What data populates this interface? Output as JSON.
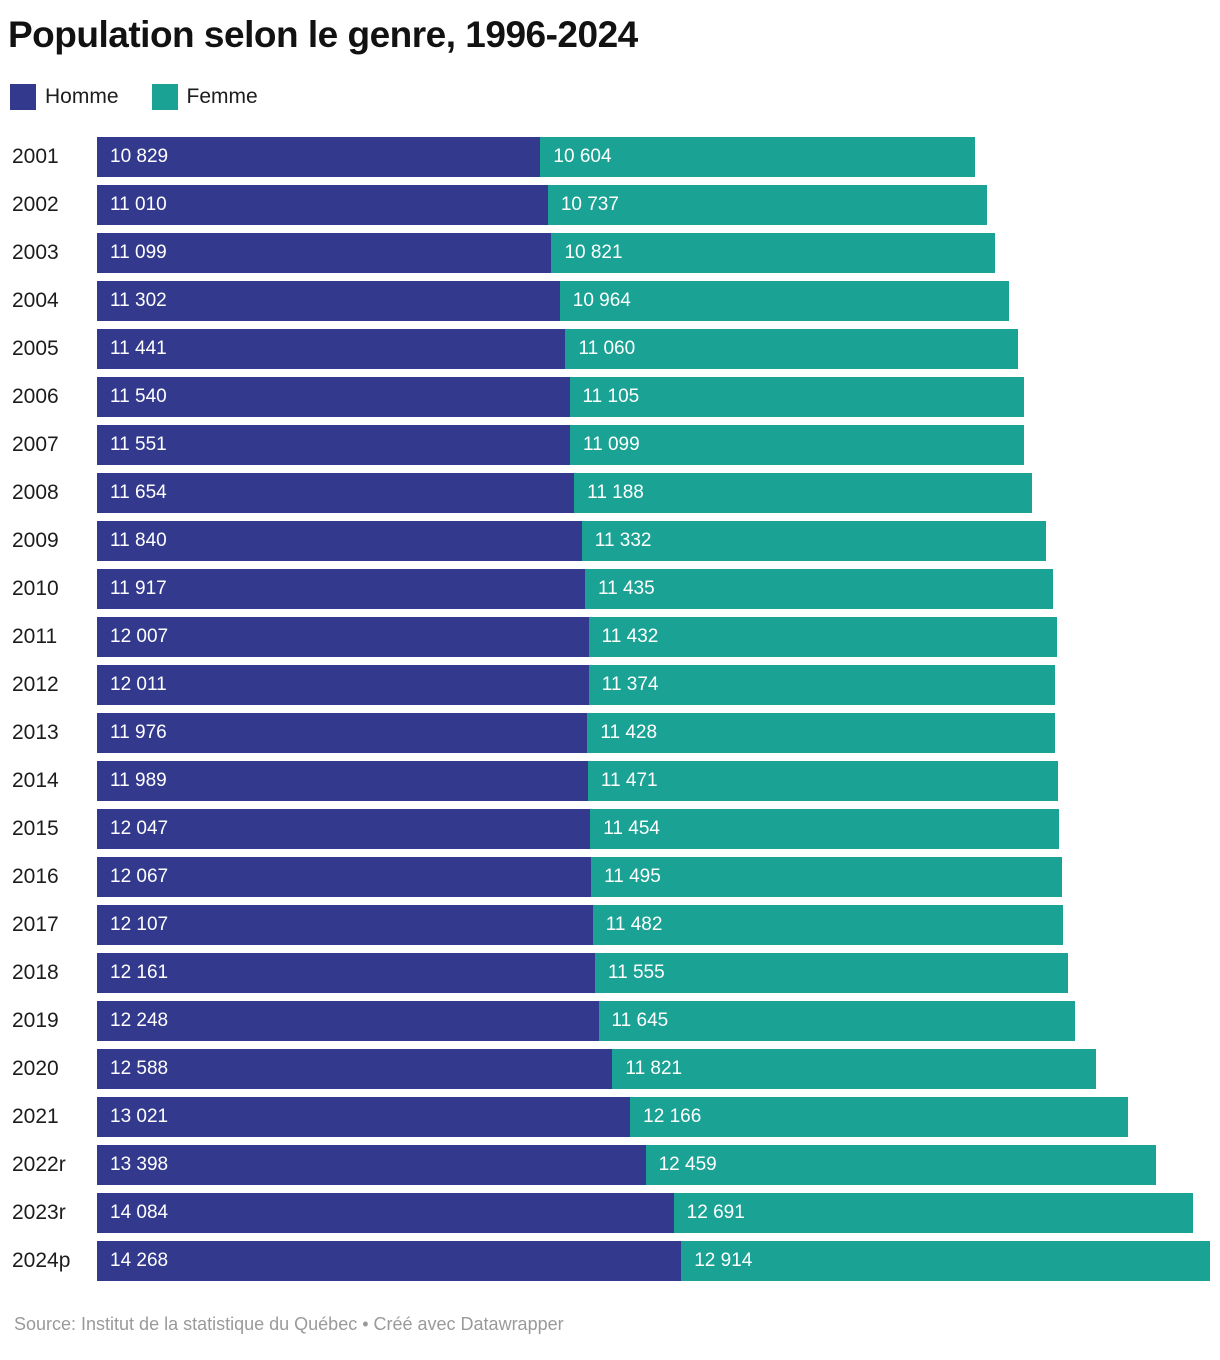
{
  "title": "Population selon le genre, 1996-2024",
  "legend": {
    "items": [
      {
        "label": "Homme",
        "color": "#333a8e"
      },
      {
        "label": "Femme",
        "color": "#1aa394"
      }
    ]
  },
  "footer": "Source: Institut de la statistique du Québec • Créé avec Datawrapper",
  "colors": {
    "homme": "#333a8e",
    "femme": "#1aa394",
    "title_text": "#121212",
    "axis_text": "#1c1c1c",
    "bar_value_text": "#ffffff",
    "footer_text": "#9a9a9a",
    "background": "#ffffff"
  },
  "chart_data": {
    "type": "bar",
    "orientation": "horizontal",
    "stacked": true,
    "title": "Population selon le genre, 1996-2024",
    "legend_position": "top",
    "grid": false,
    "categories": [
      "2001",
      "2002",
      "2003",
      "2004",
      "2005",
      "2006",
      "2007",
      "2008",
      "2009",
      "2010",
      "2011",
      "2012",
      "2013",
      "2014",
      "2015",
      "2016",
      "2017",
      "2018",
      "2019",
      "2020",
      "2021",
      "2022r",
      "2023r",
      "2024p"
    ],
    "series": [
      {
        "name": "Homme",
        "color": "#333a8e",
        "values": [
          10829,
          11010,
          11099,
          11302,
          11441,
          11540,
          11551,
          11654,
          11840,
          11917,
          12007,
          12011,
          11976,
          11989,
          12047,
          12067,
          12107,
          12161,
          12248,
          12588,
          13021,
          13398,
          14084,
          14268
        ],
        "labels": [
          "10 829",
          "11 010",
          "11 099",
          "11 302",
          "11 441",
          "11 540",
          "11 551",
          "11 654",
          "11 840",
          "11 917",
          "12 007",
          "12 011",
          "11 976",
          "11 989",
          "12 047",
          "12 067",
          "12 107",
          "12 161",
          "12 248",
          "12 588",
          "13 021",
          "13 398",
          "14 084",
          "14 268"
        ]
      },
      {
        "name": "Femme",
        "color": "#1aa394",
        "values": [
          10604,
          10737,
          10821,
          10964,
          11060,
          11105,
          11099,
          11188,
          11332,
          11435,
          11432,
          11374,
          11428,
          11471,
          11454,
          11495,
          11482,
          11555,
          11645,
          11821,
          12166,
          12459,
          12691,
          12914
        ],
        "labels": [
          "10 604",
          "10 737",
          "10 821",
          "10 964",
          "11 060",
          "11 105",
          "11 099",
          "11 188",
          "11 332",
          "11 435",
          "11 432",
          "11 374",
          "11 428",
          "11 471",
          "11 454",
          "11 495",
          "11 482",
          "11 555",
          "11 645",
          "11 821",
          "12 166",
          "12 459",
          "12 691",
          "12 914"
        ]
      }
    ],
    "xlim": [
      0,
      27182
    ],
    "value_labels_inside_bars": true
  }
}
